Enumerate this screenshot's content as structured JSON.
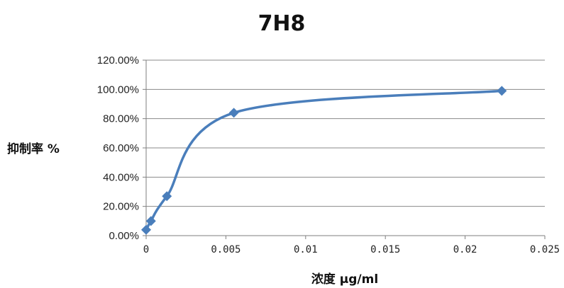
{
  "chart_data": {
    "type": "scatter",
    "title": "7H8",
    "xlabel": "浓度 μg/ml",
    "ylabel": "抑制率 %",
    "xlim": [
      0,
      0.025
    ],
    "ylim": [
      0,
      1.2
    ],
    "x_ticks": [
      "0",
      "0.005",
      "0.01",
      "0.015",
      "0.02",
      "0.025"
    ],
    "y_ticks": [
      "0.00%",
      "20.00%",
      "40.00%",
      "60.00%",
      "80.00%",
      "100.00%",
      "120.00%"
    ],
    "grid": "horizontal",
    "smooth": true,
    "marker": "diamond",
    "series": [
      {
        "color": "#4a7ebb",
        "x": [
          0.0,
          0.0003,
          0.0013,
          0.0055,
          0.0223
        ],
        "y": [
          0.04,
          0.1,
          0.27,
          0.84,
          0.99
        ]
      }
    ]
  }
}
